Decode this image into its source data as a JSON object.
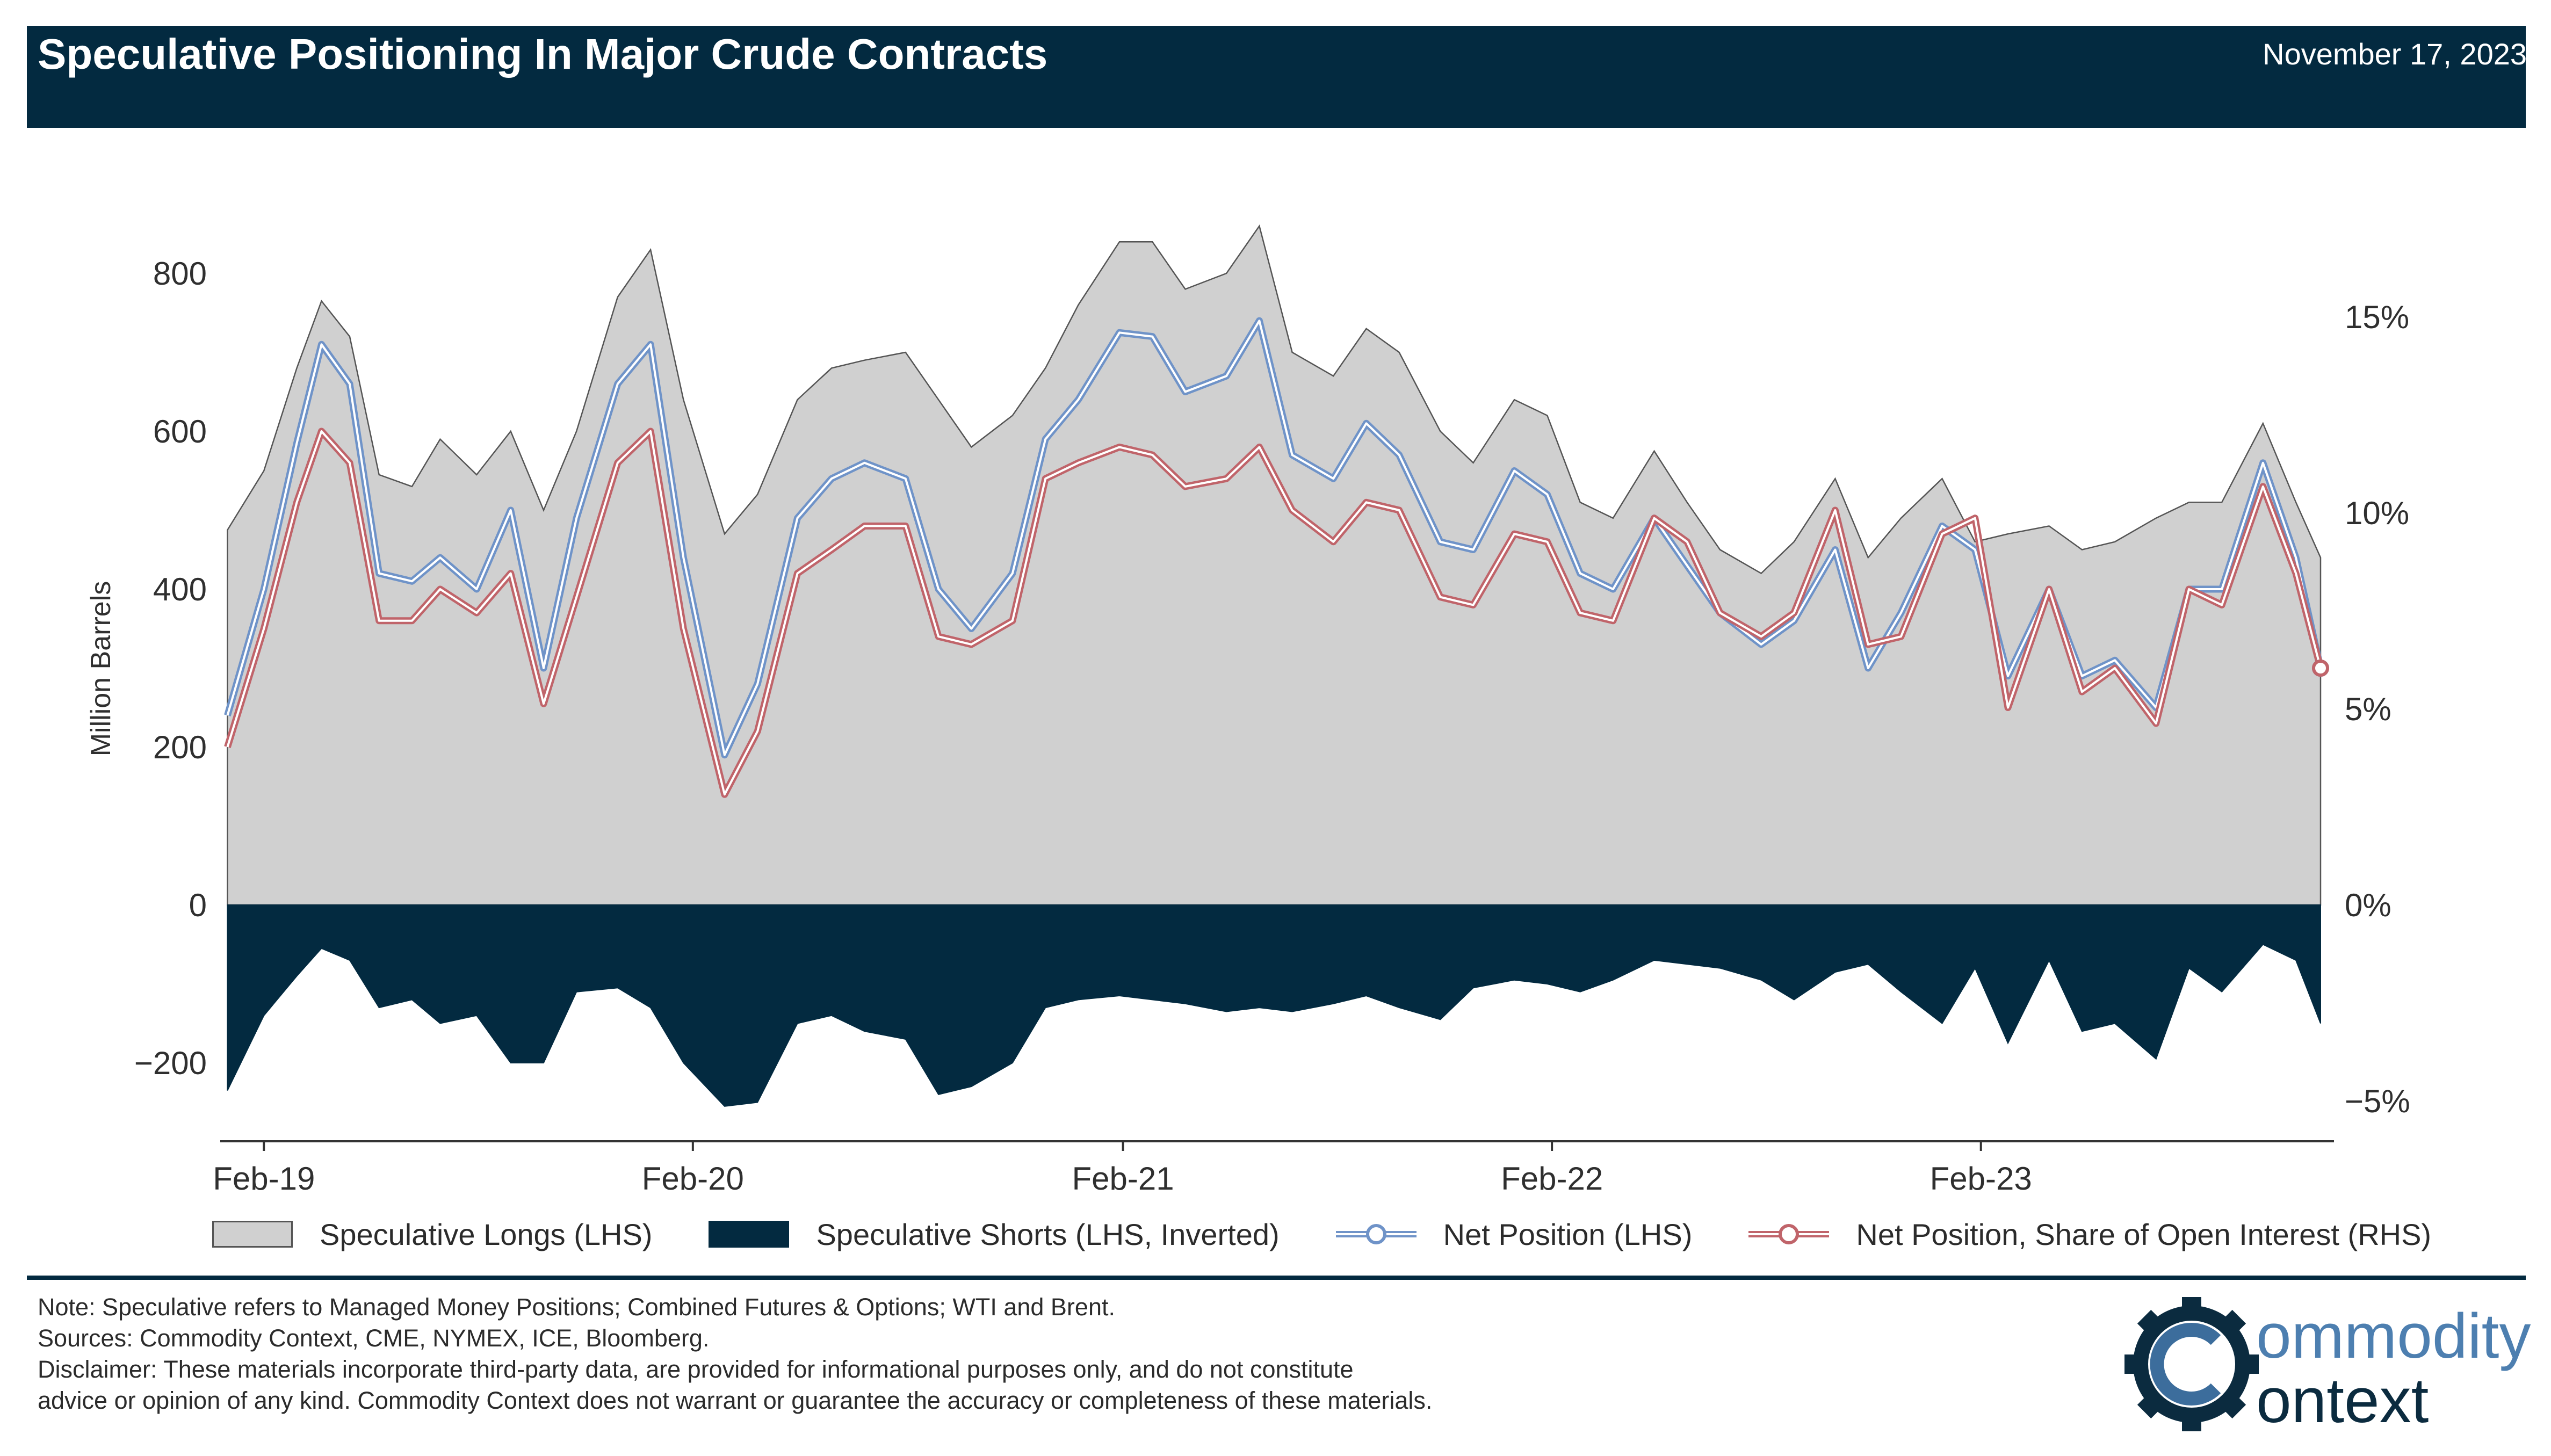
{
  "header": {
    "title": "Speculative Positioning In Major Crude Contracts",
    "date": "November 17, 2023"
  },
  "colors": {
    "header_bg": "#032a40",
    "longs": "#d0d0d0",
    "shorts": "#032a40",
    "net_position": "#6f93c8",
    "net_share": "#c0646a"
  },
  "chart_data": {
    "type": "area",
    "ylabel": "Million Barrels",
    "ylim_left": [
      -300,
      900
    ],
    "ylim_right": [
      "-5%",
      "15%"
    ],
    "y_ticks_left": [
      "−200",
      "0",
      "200",
      "400",
      "600",
      "800"
    ],
    "y_ticks_right": [
      "−5%",
      "0%",
      "5%",
      "10%",
      "15%"
    ],
    "x_ticks": [
      "Feb-19",
      "Feb-20",
      "Feb-21",
      "Feb-22",
      "Feb-23"
    ],
    "x_range": [
      "2019-01-04",
      "2023-11-17"
    ],
    "series": [
      {
        "name": "Speculative Longs (LHS)",
        "points": [
          [
            "2019-01-01",
            475
          ],
          [
            "2019-02-01",
            550
          ],
          [
            "2019-03-01",
            680
          ],
          [
            "2019-03-22",
            765
          ],
          [
            "2019-04-15",
            720
          ],
          [
            "2019-05-10",
            545
          ],
          [
            "2019-06-07",
            530
          ],
          [
            "2019-07-01",
            590
          ],
          [
            "2019-08-01",
            545
          ],
          [
            "2019-08-30",
            600
          ],
          [
            "2019-09-27",
            500
          ],
          [
            "2019-10-25",
            600
          ],
          [
            "2019-11-29",
            770
          ],
          [
            "2019-12-27",
            830
          ],
          [
            "2020-01-24",
            640
          ],
          [
            "2020-02-28",
            470
          ],
          [
            "2020-03-27",
            520
          ],
          [
            "2020-04-30",
            640
          ],
          [
            "2020-05-29",
            680
          ],
          [
            "2020-06-26",
            690
          ],
          [
            "2020-07-31",
            700
          ],
          [
            "2020-08-28",
            640
          ],
          [
            "2020-09-25",
            580
          ],
          [
            "2020-10-30",
            620
          ],
          [
            "2020-11-27",
            680
          ],
          [
            "2020-12-25",
            760
          ],
          [
            "2021-01-29",
            840
          ],
          [
            "2021-02-26",
            840
          ],
          [
            "2021-03-26",
            780
          ],
          [
            "2021-04-30",
            800
          ],
          [
            "2021-05-28",
            860
          ],
          [
            "2021-06-25",
            700
          ],
          [
            "2021-07-30",
            670
          ],
          [
            "2021-08-27",
            730
          ],
          [
            "2021-09-24",
            700
          ],
          [
            "2021-10-29",
            600
          ],
          [
            "2021-11-26",
            560
          ],
          [
            "2021-12-31",
            640
          ],
          [
            "2022-01-28",
            620
          ],
          [
            "2022-02-25",
            510
          ],
          [
            "2022-03-25",
            490
          ],
          [
            "2022-04-29",
            575
          ],
          [
            "2022-05-27",
            510
          ],
          [
            "2022-06-24",
            450
          ],
          [
            "2022-07-29",
            420
          ],
          [
            "2022-08-26",
            460
          ],
          [
            "2022-09-30",
            540
          ],
          [
            "2022-10-28",
            440
          ],
          [
            "2022-11-25",
            490
          ],
          [
            "2022-12-30",
            540
          ],
          [
            "2023-01-27",
            460
          ],
          [
            "2023-02-24",
            470
          ],
          [
            "2023-03-31",
            480
          ],
          [
            "2023-04-28",
            450
          ],
          [
            "2023-05-26",
            460
          ],
          [
            "2023-06-30",
            490
          ],
          [
            "2023-07-28",
            510
          ],
          [
            "2023-08-25",
            510
          ],
          [
            "2023-09-29",
            610
          ],
          [
            "2023-10-27",
            510
          ],
          [
            "2023-11-17",
            440
          ]
        ]
      },
      {
        "name": "Speculative Shorts (LHS, Inverted)",
        "points": [
          [
            "2019-01-01",
            -235
          ],
          [
            "2019-02-01",
            -140
          ],
          [
            "2019-03-01",
            -90
          ],
          [
            "2019-03-22",
            -55
          ],
          [
            "2019-04-15",
            -70
          ],
          [
            "2019-05-10",
            -130
          ],
          [
            "2019-06-07",
            -120
          ],
          [
            "2019-07-01",
            -150
          ],
          [
            "2019-08-01",
            -140
          ],
          [
            "2019-08-30",
            -200
          ],
          [
            "2019-09-27",
            -200
          ],
          [
            "2019-10-25",
            -110
          ],
          [
            "2019-11-29",
            -105
          ],
          [
            "2019-12-27",
            -130
          ],
          [
            "2020-01-24",
            -200
          ],
          [
            "2020-02-28",
            -255
          ],
          [
            "2020-03-27",
            -250
          ],
          [
            "2020-04-30",
            -150
          ],
          [
            "2020-05-29",
            -140
          ],
          [
            "2020-06-26",
            -160
          ],
          [
            "2020-07-31",
            -170
          ],
          [
            "2020-08-28",
            -240
          ],
          [
            "2020-09-25",
            -230
          ],
          [
            "2020-10-30",
            -200
          ],
          [
            "2020-11-27",
            -130
          ],
          [
            "2020-12-25",
            -120
          ],
          [
            "2021-01-29",
            -115
          ],
          [
            "2021-02-26",
            -120
          ],
          [
            "2021-03-26",
            -125
          ],
          [
            "2021-04-30",
            -135
          ],
          [
            "2021-05-28",
            -130
          ],
          [
            "2021-06-25",
            -135
          ],
          [
            "2021-07-30",
            -125
          ],
          [
            "2021-08-27",
            -115
          ],
          [
            "2021-09-24",
            -130
          ],
          [
            "2021-10-29",
            -145
          ],
          [
            "2021-11-26",
            -105
          ],
          [
            "2021-12-31",
            -95
          ],
          [
            "2022-01-28",
            -100
          ],
          [
            "2022-02-25",
            -110
          ],
          [
            "2022-03-25",
            -95
          ],
          [
            "2022-04-29",
            -70
          ],
          [
            "2022-05-27",
            -75
          ],
          [
            "2022-06-24",
            -80
          ],
          [
            "2022-07-29",
            -95
          ],
          [
            "2022-08-26",
            -120
          ],
          [
            "2022-09-30",
            -85
          ],
          [
            "2022-10-28",
            -75
          ],
          [
            "2022-11-25",
            -110
          ],
          [
            "2022-12-30",
            -150
          ],
          [
            "2023-01-27",
            -80
          ],
          [
            "2023-02-24",
            -175
          ],
          [
            "2023-03-31",
            -70
          ],
          [
            "2023-04-28",
            -160
          ],
          [
            "2023-05-26",
            -150
          ],
          [
            "2023-06-30",
            -195
          ],
          [
            "2023-07-28",
            -80
          ],
          [
            "2023-08-25",
            -110
          ],
          [
            "2023-09-29",
            -50
          ],
          [
            "2023-10-27",
            -70
          ],
          [
            "2023-11-17",
            -150
          ]
        ]
      },
      {
        "name": "Net Position (LHS)",
        "points": [
          [
            "2019-01-01",
            240
          ],
          [
            "2019-02-01",
            400
          ],
          [
            "2019-03-01",
            585
          ],
          [
            "2019-03-22",
            710
          ],
          [
            "2019-04-15",
            660
          ],
          [
            "2019-05-10",
            420
          ],
          [
            "2019-06-07",
            410
          ],
          [
            "2019-07-01",
            440
          ],
          [
            "2019-08-01",
            400
          ],
          [
            "2019-08-30",
            500
          ],
          [
            "2019-09-27",
            300
          ],
          [
            "2019-10-25",
            490
          ],
          [
            "2019-11-29",
            660
          ],
          [
            "2019-12-27",
            710
          ],
          [
            "2020-01-24",
            440
          ],
          [
            "2020-02-28",
            190
          ],
          [
            "2020-03-27",
            280
          ],
          [
            "2020-04-30",
            490
          ],
          [
            "2020-05-29",
            540
          ],
          [
            "2020-06-26",
            560
          ],
          [
            "2020-07-31",
            540
          ],
          [
            "2020-08-28",
            400
          ],
          [
            "2020-09-25",
            350
          ],
          [
            "2020-10-30",
            420
          ],
          [
            "2020-11-27",
            590
          ],
          [
            "2020-12-25",
            640
          ],
          [
            "2021-01-29",
            725
          ],
          [
            "2021-02-26",
            720
          ],
          [
            "2021-03-26",
            650
          ],
          [
            "2021-04-30",
            670
          ],
          [
            "2021-05-28",
            740
          ],
          [
            "2021-06-25",
            570
          ],
          [
            "2021-07-30",
            540
          ],
          [
            "2021-08-27",
            610
          ],
          [
            "2021-09-24",
            570
          ],
          [
            "2021-10-29",
            460
          ],
          [
            "2021-11-26",
            450
          ],
          [
            "2021-12-31",
            550
          ],
          [
            "2022-01-28",
            520
          ],
          [
            "2022-02-25",
            420
          ],
          [
            "2022-03-25",
            400
          ],
          [
            "2022-04-29",
            490
          ],
          [
            "2022-05-27",
            430
          ],
          [
            "2022-06-24",
            370
          ],
          [
            "2022-07-29",
            330
          ],
          [
            "2022-08-26",
            360
          ],
          [
            "2022-09-30",
            450
          ],
          [
            "2022-10-28",
            300
          ],
          [
            "2022-11-25",
            370
          ],
          [
            "2022-12-30",
            480
          ],
          [
            "2023-01-27",
            450
          ],
          [
            "2023-02-24",
            290
          ],
          [
            "2023-03-31",
            400
          ],
          [
            "2023-04-28",
            290
          ],
          [
            "2023-05-26",
            310
          ],
          [
            "2023-06-30",
            250
          ],
          [
            "2023-07-28",
            400
          ],
          [
            "2023-08-25",
            400
          ],
          [
            "2023-09-29",
            560
          ],
          [
            "2023-10-27",
            440
          ],
          [
            "2023-11-17",
            300
          ]
        ]
      },
      {
        "name": "Net Position, Share of Open Interest (RHS)",
        "points": [
          [
            "2019-01-01",
            200
          ],
          [
            "2019-02-01",
            350
          ],
          [
            "2019-03-01",
            510
          ],
          [
            "2019-03-22",
            600
          ],
          [
            "2019-04-15",
            560
          ],
          [
            "2019-05-10",
            360
          ],
          [
            "2019-06-07",
            360
          ],
          [
            "2019-07-01",
            400
          ],
          [
            "2019-08-01",
            370
          ],
          [
            "2019-08-30",
            420
          ],
          [
            "2019-09-27",
            255
          ],
          [
            "2019-10-25",
            390
          ],
          [
            "2019-11-29",
            560
          ],
          [
            "2019-12-27",
            600
          ],
          [
            "2020-01-24",
            350
          ],
          [
            "2020-02-28",
            140
          ],
          [
            "2020-03-27",
            220
          ],
          [
            "2020-04-30",
            420
          ],
          [
            "2020-05-29",
            450
          ],
          [
            "2020-06-26",
            480
          ],
          [
            "2020-07-31",
            480
          ],
          [
            "2020-08-28",
            340
          ],
          [
            "2020-09-25",
            330
          ],
          [
            "2020-10-30",
            360
          ],
          [
            "2020-11-27",
            540
          ],
          [
            "2020-12-25",
            560
          ],
          [
            "2021-01-29",
            580
          ],
          [
            "2021-02-26",
            570
          ],
          [
            "2021-03-26",
            530
          ],
          [
            "2021-04-30",
            540
          ],
          [
            "2021-05-28",
            580
          ],
          [
            "2021-06-25",
            500
          ],
          [
            "2021-07-30",
            460
          ],
          [
            "2021-08-27",
            510
          ],
          [
            "2021-09-24",
            500
          ],
          [
            "2021-10-29",
            390
          ],
          [
            "2021-11-26",
            380
          ],
          [
            "2021-12-31",
            470
          ],
          [
            "2022-01-28",
            460
          ],
          [
            "2022-02-25",
            370
          ],
          [
            "2022-03-25",
            360
          ],
          [
            "2022-04-29",
            490
          ],
          [
            "2022-05-27",
            460
          ],
          [
            "2022-06-24",
            370
          ],
          [
            "2022-07-29",
            340
          ],
          [
            "2022-08-26",
            370
          ],
          [
            "2022-09-30",
            500
          ],
          [
            "2022-10-28",
            330
          ],
          [
            "2022-11-25",
            340
          ],
          [
            "2022-12-30",
            470
          ],
          [
            "2023-01-27",
            490
          ],
          [
            "2023-02-24",
            250
          ],
          [
            "2023-03-31",
            400
          ],
          [
            "2023-04-28",
            270
          ],
          [
            "2023-05-26",
            300
          ],
          [
            "2023-06-30",
            230
          ],
          [
            "2023-07-28",
            400
          ],
          [
            "2023-08-25",
            380
          ],
          [
            "2023-09-29",
            530
          ],
          [
            "2023-10-27",
            420
          ],
          [
            "2023-11-17",
            300
          ]
        ]
      }
    ]
  },
  "legend": [
    {
      "label": "Speculative Longs (LHS)"
    },
    {
      "label": "Speculative Shorts (LHS, Inverted)"
    },
    {
      "label": "Net Position (LHS)"
    },
    {
      "label": "Net Position, Share of Open Interest (RHS)"
    }
  ],
  "notes": {
    "line1": "Note: Speculative refers to Managed Money Positions; Combined Futures & Options; WTI and Brent.",
    "line2": "Sources: Commodity Context, CME, NYMEX, ICE, Bloomberg.",
    "line3": "Disclaimer: These materials incorporate third-party data, are provided for informational purposes only, and do not constitute",
    "line4": "advice or opinion of any kind. Commodity Context does not warrant or guarantee the accuracy or completeness of these materials."
  },
  "logo": {
    "text_top": "ommodity",
    "text_bottom": "ontext"
  }
}
